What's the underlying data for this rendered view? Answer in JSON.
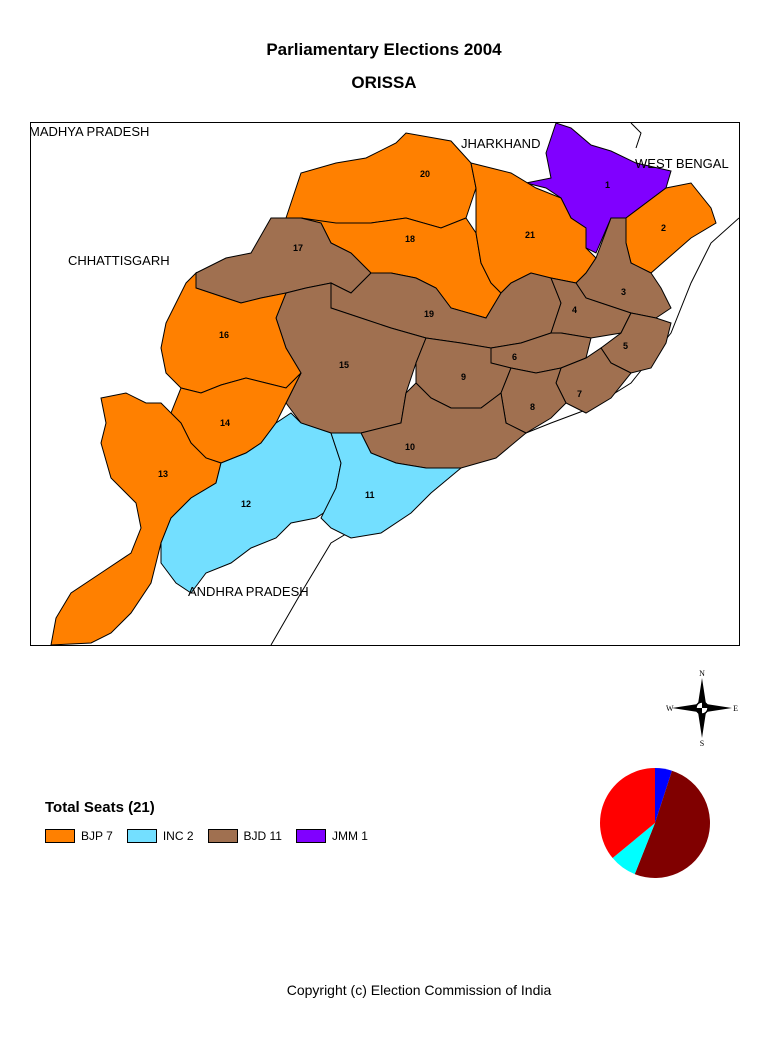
{
  "header": {
    "title": "Parliamentary Elections 2004",
    "subtitle": "ORISSA"
  },
  "map": {
    "neighbors": {
      "madhya_pradesh": "MADHYA PRADESH",
      "jharkhand": "JHARKHAND",
      "west_bengal": "WEST BENGAL",
      "chhattisgarh": "CHHATTISGARH",
      "andhra_pradesh": "ANDHRA PRADESH"
    },
    "constituencies": [
      {
        "number": "1",
        "party": "JMM"
      },
      {
        "number": "2",
        "party": "BJP"
      },
      {
        "number": "3",
        "party": "BJD"
      },
      {
        "number": "4",
        "party": "BJD"
      },
      {
        "number": "5",
        "party": "BJD"
      },
      {
        "number": "6",
        "party": "BJD"
      },
      {
        "number": "7",
        "party": "BJD"
      },
      {
        "number": "8",
        "party": "BJD"
      },
      {
        "number": "9",
        "party": "BJD"
      },
      {
        "number": "10",
        "party": "BJD"
      },
      {
        "number": "11",
        "party": "INC"
      },
      {
        "number": "12",
        "party": "INC"
      },
      {
        "number": "13",
        "party": "BJP"
      },
      {
        "number": "14",
        "party": "BJP"
      },
      {
        "number": "15",
        "party": "BJD"
      },
      {
        "number": "16",
        "party": "BJP"
      },
      {
        "number": "17",
        "party": "BJD"
      },
      {
        "number": "18",
        "party": "BJP"
      },
      {
        "number": "19",
        "party": "BJD"
      },
      {
        "number": "20",
        "party": "BJP"
      },
      {
        "number": "21",
        "party": "BJP"
      }
    ],
    "compass": {
      "n": "N",
      "s": "S",
      "e": "E",
      "w": "W"
    }
  },
  "legend": {
    "title": "Total Seats (21)",
    "items": [
      {
        "label": "BJP  7",
        "color": "#ff8000"
      },
      {
        "label": "INC  2",
        "color": "#73dfff"
      },
      {
        "label": "BJD  11",
        "color": "#a07050"
      },
      {
        "label": "JMM  1",
        "color": "#8000ff"
      }
    ]
  },
  "pie": {
    "note": "vote share pie",
    "slices": [
      {
        "color": "#0000ff",
        "fraction": 0.05
      },
      {
        "color": "#800000",
        "fraction": 0.51
      },
      {
        "color": "#00ffff",
        "fraction": 0.08
      },
      {
        "color": "#ff0000",
        "fraction": 0.36
      }
    ]
  },
  "footer": {
    "copyright": "Copyright (c) Election Commission of India"
  }
}
